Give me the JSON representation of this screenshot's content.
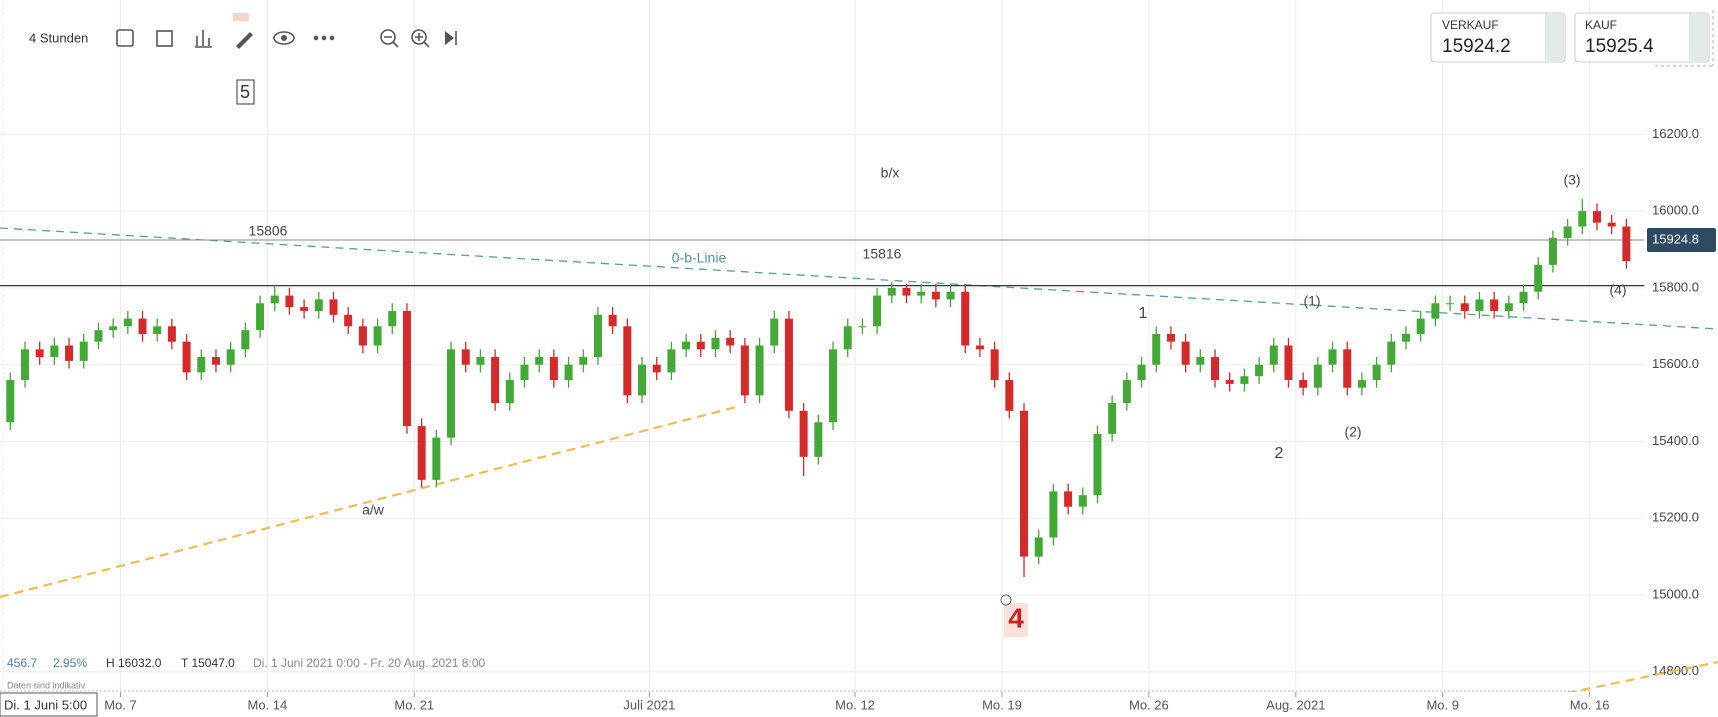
{
  "chart_data": {
    "type": "candlestick",
    "interval": "4 Stunden",
    "open": [
      15450,
      15560,
      15640,
      15620,
      15650,
      15610,
      15660,
      15690,
      15700,
      15720,
      15680,
      15700,
      15660,
      15580,
      15620,
      15600,
      15640,
      15690,
      15760,
      15780,
      15750,
      15740,
      15770,
      15730,
      15700,
      15650,
      15700,
      15740,
      15440,
      15300,
      15410,
      15640,
      15600,
      15620,
      15500,
      15560,
      15600,
      15620,
      15560,
      15600,
      15620,
      15730,
      15700,
      15520,
      15600,
      15580,
      15640,
      15660,
      15640,
      15670,
      15650,
      15520,
      15650,
      15720,
      15480,
      15360,
      15450,
      15640,
      15700,
      15700,
      15780,
      15800,
      15780,
      15790,
      15770,
      15790,
      15650,
      15640,
      15560,
      15480,
      15100,
      15150,
      15270,
      15230,
      15260,
      15420,
      15500,
      15560,
      15600,
      15680,
      15660,
      15600,
      15620,
      15560,
      15550,
      15570,
      15600,
      15650,
      15560,
      15540,
      15600,
      15640,
      15540,
      15560,
      15600,
      15660,
      15680,
      15720,
      15760,
      15760,
      15740,
      15770,
      15740,
      15760,
      15790,
      15860,
      15930,
      15960,
      16000,
      15970,
      15960
    ],
    "high": [
      15580,
      15660,
      15660,
      15670,
      15670,
      15680,
      15710,
      15720,
      15740,
      15740,
      15720,
      15720,
      15680,
      15640,
      15640,
      15660,
      15710,
      15780,
      15806,
      15800,
      15770,
      15790,
      15790,
      15750,
      15720,
      15720,
      15760,
      15760,
      15460,
      15430,
      15660,
      15660,
      15640,
      15640,
      15580,
      15620,
      15640,
      15640,
      15620,
      15640,
      15750,
      15750,
      15720,
      15620,
      15620,
      15660,
      15680,
      15680,
      15690,
      15690,
      15670,
      15670,
      15740,
      15740,
      15500,
      15470,
      15660,
      15720,
      15720,
      15800,
      15816,
      15810,
      15810,
      15810,
      15810,
      15810,
      15670,
      15660,
      15580,
      15500,
      15170,
      15290,
      15290,
      15280,
      15440,
      15520,
      15580,
      15620,
      15700,
      15700,
      15680,
      15640,
      15640,
      15580,
      15590,
      15620,
      15670,
      15670,
      15580,
      15620,
      15660,
      15660,
      15580,
      15620,
      15680,
      15700,
      15740,
      15780,
      15780,
      15780,
      15790,
      15790,
      15780,
      15810,
      15880,
      15950,
      15980,
      16032,
      16020,
      15990,
      15980
    ],
    "low": [
      15430,
      15540,
      15600,
      15600,
      15590,
      15590,
      15640,
      15670,
      15680,
      15660,
      15660,
      15640,
      15560,
      15560,
      15580,
      15580,
      15620,
      15670,
      15740,
      15730,
      15720,
      15720,
      15710,
      15680,
      15630,
      15630,
      15680,
      15420,
      15280,
      15280,
      15390,
      15580,
      15580,
      15480,
      15480,
      15540,
      15580,
      15540,
      15540,
      15580,
      15600,
      15680,
      15500,
      15500,
      15560,
      15560,
      15620,
      15620,
      15620,
      15630,
      15500,
      15500,
      15630,
      15460,
      15310,
      15340,
      15430,
      15620,
      15680,
      15680,
      15760,
      15760,
      15760,
      15750,
      15750,
      15630,
      15620,
      15540,
      15460,
      15047,
      15080,
      15130,
      15210,
      15210,
      15240,
      15400,
      15480,
      15540,
      15580,
      15640,
      15580,
      15580,
      15540,
      15530,
      15530,
      15550,
      15580,
      15540,
      15520,
      15520,
      15580,
      15520,
      15520,
      15540,
      15580,
      15640,
      15660,
      15700,
      15740,
      15720,
      15720,
      15720,
      15720,
      15740,
      15770,
      15840,
      15910,
      15940,
      15950,
      15940,
      15850
    ],
    "close": [
      15560,
      15640,
      15620,
      15650,
      15610,
      15660,
      15690,
      15700,
      15720,
      15680,
      15700,
      15660,
      15580,
      15620,
      15600,
      15640,
      15690,
      15760,
      15780,
      15750,
      15740,
      15770,
      15730,
      15700,
      15650,
      15700,
      15740,
      15440,
      15300,
      15410,
      15640,
      15600,
      15620,
      15500,
      15560,
      15600,
      15620,
      15560,
      15600,
      15620,
      15730,
      15700,
      15520,
      15600,
      15580,
      15640,
      15660,
      15640,
      15670,
      15650,
      15520,
      15650,
      15720,
      15480,
      15360,
      15450,
      15640,
      15700,
      15700,
      15780,
      15800,
      15780,
      15790,
      15770,
      15790,
      15650,
      15640,
      15560,
      15480,
      15100,
      15150,
      15270,
      15230,
      15260,
      15420,
      15500,
      15560,
      15600,
      15680,
      15660,
      15600,
      15620,
      15560,
      15550,
      15570,
      15600,
      15650,
      15560,
      15540,
      15600,
      15640,
      15540,
      15560,
      15600,
      15660,
      15680,
      15720,
      15760,
      15760,
      15740,
      15770,
      15740,
      15760,
      15790,
      15860,
      15930,
      15960,
      16000,
      15970,
      15960,
      15870
    ],
    "up_color": "#43a836",
    "down_color": "#d42a2a",
    "ylim": [
      14750,
      16550
    ],
    "yticks": [
      {
        "value": 14800,
        "label": "14800.0"
      },
      {
        "value": 15000,
        "label": "15000.0"
      },
      {
        "value": 15200,
        "label": "15200.0"
      },
      {
        "value": 15400,
        "label": "15400.0"
      },
      {
        "value": 15600,
        "label": "15600.0"
      },
      {
        "value": 15800,
        "label": "15800.0"
      },
      {
        "value": 16000,
        "label": "16000.0"
      },
      {
        "value": 16200,
        "label": "16200.0"
      }
    ],
    "xlim": [
      -0.2,
      111.7
    ],
    "xticks": [
      {
        "value": 0,
        "label": "Di. 1 Juni 5:00"
      },
      {
        "value": 8,
        "label": "Mo. 7"
      },
      {
        "value": 18,
        "label": "Mo. 14"
      },
      {
        "value": 28,
        "label": "Mo. 21"
      },
      {
        "value": 44,
        "label": "Juli 2021"
      },
      {
        "value": 58,
        "label": "Mo. 12"
      },
      {
        "value": 68,
        "label": "Mo. 19"
      },
      {
        "value": 78,
        "label": "Mo. 26"
      },
      {
        "value": 88,
        "label": "Aug. 2021"
      },
      {
        "value": 98,
        "label": "Mo. 9"
      },
      {
        "value": 108,
        "label": "Mo. 16"
      }
    ],
    "grid": true,
    "resistance": 15806,
    "last_price": 15924.8,
    "annotations": [
      "0-b-Linie",
      "15816",
      "b/x",
      "a/w",
      "1",
      "2",
      "(1)",
      "(2)",
      "(3)",
      "(4)",
      "4",
      "5"
    ],
    "quotes": {
      "sell_label": "VERKAUF",
      "sell": 15924.2,
      "buy_label": "KAUF",
      "buy": 15925.4
    },
    "info": {
      "change": 456.7,
      "change_pct": "2.95%",
      "high": "H 16032.0",
      "low": "T 15047.0",
      "range": "Di. 1 Juni 2021 0:00 - Fr. 20 Aug. 2021 8:00",
      "disclaimer": "Daten sind indikativ"
    }
  }
}
